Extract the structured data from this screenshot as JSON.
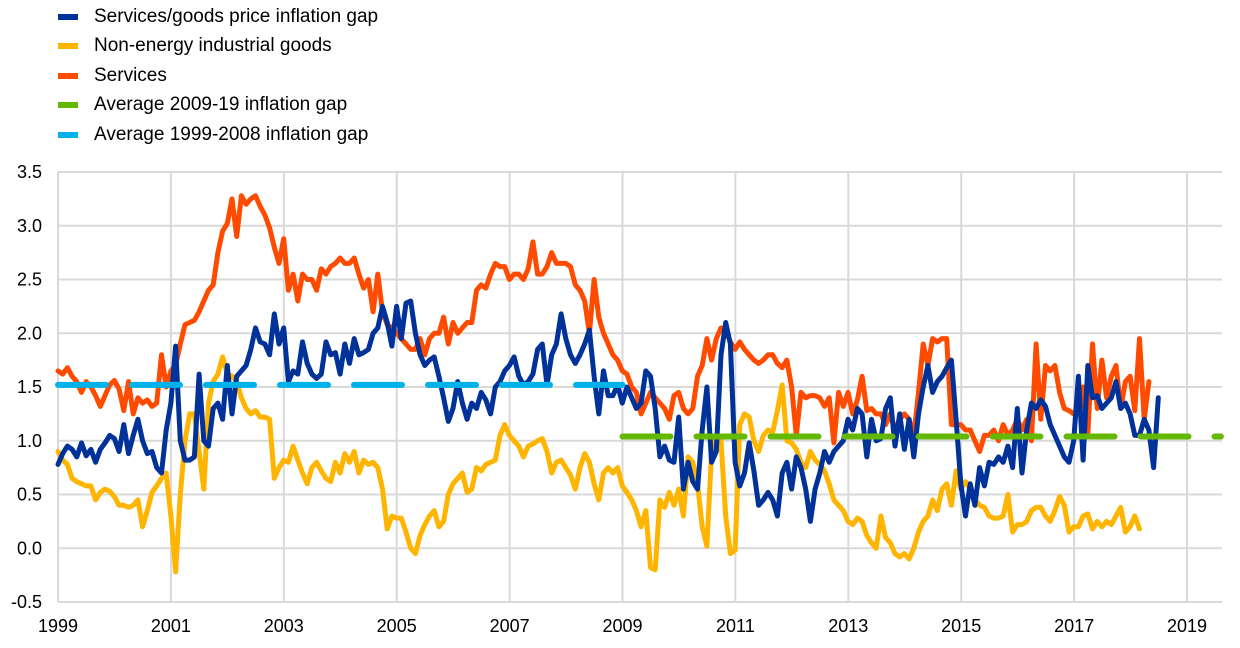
{
  "chart_data": {
    "type": "line",
    "title": "",
    "xlabel": "",
    "ylabel": "",
    "ylim": [
      -0.5,
      3.5
    ],
    "xlim": [
      1999.0,
      2019.6
    ],
    "grid": true,
    "legend_position": "top-left",
    "y_ticks": [
      "3.5",
      "3.0",
      "2.5",
      "2.0",
      "1.5",
      "1.0",
      "0.5",
      "0.0",
      "-0.5"
    ],
    "y_tick_values": [
      3.5,
      3.0,
      2.5,
      2.0,
      1.5,
      1.0,
      0.5,
      0.0,
      -0.5
    ],
    "x_ticks": [
      "1999",
      "2001",
      "2003",
      "2005",
      "2007",
      "2009",
      "2011",
      "2013",
      "2015",
      "2017",
      "2019"
    ],
    "x_tick_values": [
      1999,
      2001,
      2003,
      2005,
      2007,
      2009,
      2011,
      2013,
      2015,
      2017,
      2019
    ],
    "colors": {
      "gap": "#003299",
      "goods": "#FFB400",
      "services": "#FF4B00",
      "avg_recent": "#65B800",
      "avg_early": "#00B1EA"
    },
    "series": [
      {
        "key": "gap",
        "name": "Services/goods price inflation gap",
        "start": 1999.0,
        "step": 0.0833,
        "values": [
          0.78,
          0.88,
          0.95,
          0.92,
          0.85,
          0.98,
          0.86,
          0.92,
          0.8,
          0.92,
          0.98,
          1.05,
          1.02,
          0.9,
          1.15,
          0.88,
          1.05,
          1.2,
          1.0,
          0.88,
          0.9,
          0.75,
          0.7,
          1.1,
          1.35,
          1.88,
          1.0,
          0.82,
          0.82,
          0.85,
          1.62,
          1.0,
          0.95,
          1.3,
          1.35,
          1.2,
          1.7,
          1.25,
          1.6,
          1.65,
          1.7,
          1.85,
          2.05,
          1.92,
          1.9,
          1.8,
          2.18,
          1.9,
          2.05,
          1.55,
          1.65,
          1.62,
          1.92,
          1.72,
          1.62,
          1.58,
          1.62,
          1.92,
          1.8,
          1.82,
          1.62,
          1.9,
          1.72,
          1.95,
          1.8,
          1.82,
          1.85,
          2.0,
          2.05,
          2.25,
          2.1,
          1.88,
          2.25,
          1.95,
          2.28,
          2.3,
          2.0,
          1.8,
          1.7,
          1.75,
          1.78,
          1.6,
          1.4,
          1.18,
          1.3,
          1.55,
          1.35,
          1.2,
          1.35,
          1.3,
          1.45,
          1.38,
          1.25,
          1.5,
          1.55,
          1.65,
          1.7,
          1.78,
          1.6,
          1.52,
          1.55,
          1.62,
          1.85,
          1.9,
          1.52,
          1.8,
          1.9,
          2.18,
          1.95,
          1.8,
          1.72,
          1.8,
          1.9,
          2.03,
          1.6,
          1.25,
          1.65,
          1.42,
          1.42,
          1.52,
          1.35,
          1.5,
          1.4,
          1.3,
          1.35,
          1.65,
          1.6,
          1.3,
          0.85,
          0.95,
          0.82,
          0.8,
          1.22,
          0.55,
          0.8,
          0.62,
          0.55,
          1.1,
          1.5,
          0.8,
          0.9,
          1.8,
          2.1,
          1.9,
          0.8,
          0.58,
          0.7,
          0.98,
          0.72,
          0.4,
          0.45,
          0.52,
          0.45,
          0.3,
          0.7,
          0.8,
          0.55,
          0.85,
          0.75,
          0.55,
          0.25,
          0.55,
          0.7,
          0.9,
          0.8,
          0.9,
          0.95,
          1.0,
          1.2,
          1.1,
          1.3,
          1.25,
          0.85,
          1.2,
          1.0,
          1.02,
          1.3,
          1.4,
          0.95,
          1.25,
          0.92,
          1.2,
          0.85,
          1.25,
          1.5,
          1.7,
          1.45,
          1.55,
          1.6,
          1.68,
          1.75,
          1.2,
          0.6,
          0.3,
          0.6,
          0.4,
          0.75,
          0.58,
          0.8,
          0.78,
          0.85,
          0.8,
          0.95,
          0.75,
          1.3,
          0.7,
          1.1,
          1.35,
          1.3,
          1.38,
          1.32,
          1.15,
          1.05,
          0.95,
          0.85,
          0.8,
          1.0,
          1.6,
          0.82,
          1.7,
          1.4,
          1.42,
          1.3,
          1.35,
          1.4,
          1.55,
          1.3,
          1.35,
          1.25,
          1.05,
          1.05,
          1.2,
          1.1,
          0.75,
          1.4
        ]
      },
      {
        "key": "goods",
        "name": "Non-energy industrial goods",
        "start": 1999.0,
        "step": 0.0833,
        "values": [
          0.9,
          0.82,
          0.78,
          0.65,
          0.62,
          0.6,
          0.58,
          0.58,
          0.45,
          0.52,
          0.55,
          0.53,
          0.48,
          0.4,
          0.4,
          0.38,
          0.4,
          0.45,
          0.2,
          0.35,
          0.52,
          0.58,
          0.65,
          0.7,
          0.3,
          -0.22,
          0.5,
          1.0,
          1.25,
          1.25,
          0.9,
          0.55,
          1.35,
          1.55,
          1.62,
          1.78,
          1.62,
          1.6,
          1.55,
          1.4,
          1.3,
          1.25,
          1.28,
          1.22,
          1.22,
          1.2,
          0.65,
          0.75,
          0.82,
          0.8,
          0.95,
          0.82,
          0.7,
          0.6,
          0.75,
          0.8,
          0.72,
          0.65,
          0.62,
          0.8,
          0.7,
          0.88,
          0.8,
          0.9,
          0.7,
          0.82,
          0.78,
          0.8,
          0.75,
          0.55,
          0.18,
          0.3,
          0.28,
          0.28,
          0.15,
          0.0,
          -0.05,
          0.12,
          0.22,
          0.3,
          0.35,
          0.2,
          0.25,
          0.5,
          0.6,
          0.65,
          0.7,
          0.52,
          0.55,
          0.75,
          0.72,
          0.78,
          0.8,
          0.82,
          1.05,
          1.15,
          1.05,
          1.0,
          0.95,
          0.85,
          0.95,
          0.97,
          1.0,
          1.02,
          0.9,
          0.7,
          0.8,
          0.82,
          0.75,
          0.68,
          0.55,
          0.75,
          0.88,
          0.8,
          0.6,
          0.45,
          0.7,
          0.75,
          0.7,
          0.75,
          0.58,
          0.52,
          0.45,
          0.35,
          0.2,
          0.35,
          -0.18,
          -0.2,
          0.45,
          0.38,
          0.52,
          0.4,
          0.55,
          0.3,
          0.85,
          0.8,
          0.6,
          0.2,
          0.02,
          0.9,
          1.05,
          1.0,
          0.3,
          -0.05,
          -0.02,
          1.15,
          1.25,
          1.22,
          1.0,
          0.9,
          1.05,
          1.1,
          1.08,
          1.28,
          1.52,
          1.0,
          0.98,
          0.92,
          0.8,
          0.75,
          0.9,
          0.82,
          0.78,
          0.72,
          0.6,
          0.45,
          0.4,
          0.35,
          0.25,
          0.22,
          0.28,
          0.25,
          0.12,
          0.05,
          0.0,
          0.3,
          0.1,
          0.05,
          -0.05,
          -0.08,
          -0.05,
          -0.1,
          0.0,
          0.15,
          0.25,
          0.3,
          0.45,
          0.35,
          0.55,
          0.6,
          0.4,
          0.72,
          0.55,
          0.62,
          0.55,
          0.45,
          0.4,
          0.38,
          0.3,
          0.28,
          0.28,
          0.3,
          0.5,
          0.15,
          0.22,
          0.22,
          0.25,
          0.35,
          0.38,
          0.38,
          0.3,
          0.25,
          0.35,
          0.48,
          0.4,
          0.15,
          0.2,
          0.2,
          0.3,
          0.32,
          0.18,
          0.25,
          0.2,
          0.25,
          0.22,
          0.3,
          0.38,
          0.15,
          0.2,
          0.3,
          0.18
        ]
      },
      {
        "key": "services",
        "name": "Services",
        "start": 1999.0,
        "step": 0.0833,
        "values": [
          1.65,
          1.62,
          1.68,
          1.6,
          1.55,
          1.45,
          1.55,
          1.5,
          1.42,
          1.32,
          1.42,
          1.52,
          1.56,
          1.48,
          1.28,
          1.55,
          1.25,
          1.4,
          1.35,
          1.38,
          1.32,
          1.35,
          1.8,
          1.5,
          1.65,
          1.7,
          1.9,
          2.08,
          2.1,
          2.12,
          2.2,
          2.3,
          2.4,
          2.45,
          2.75,
          2.95,
          3.02,
          3.25,
          2.9,
          3.28,
          3.2,
          3.25,
          3.28,
          3.18,
          3.1,
          2.98,
          2.8,
          2.65,
          2.88,
          2.4,
          2.55,
          2.3,
          2.55,
          2.5,
          2.5,
          2.4,
          2.6,
          2.55,
          2.62,
          2.65,
          2.7,
          2.65,
          2.65,
          2.7,
          2.55,
          2.42,
          2.5,
          2.2,
          2.55,
          2.2,
          2.08,
          2.05,
          2.0,
          1.95,
          1.9,
          1.85,
          1.85,
          1.95,
          1.8,
          1.95,
          2.0,
          2.0,
          2.15,
          1.9,
          2.1,
          2.0,
          2.05,
          2.1,
          2.1,
          2.4,
          2.45,
          2.42,
          2.55,
          2.65,
          2.62,
          2.62,
          2.5,
          2.55,
          2.55,
          2.5,
          2.6,
          2.85,
          2.55,
          2.55,
          2.62,
          2.75,
          2.65,
          2.65,
          2.65,
          2.62,
          2.45,
          2.4,
          2.3,
          2.0,
          2.5,
          2.15,
          2.0,
          1.9,
          1.8,
          1.75,
          1.65,
          1.62,
          1.5,
          1.45,
          1.25,
          1.35,
          1.45,
          1.4,
          1.35,
          1.3,
          1.2,
          1.42,
          1.45,
          1.3,
          1.25,
          1.3,
          1.6,
          1.7,
          1.95,
          1.75,
          1.95,
          2.05,
          2.02,
          1.92,
          1.85,
          1.92,
          1.85,
          1.8,
          1.75,
          1.72,
          1.75,
          1.8,
          1.8,
          1.72,
          1.68,
          1.75,
          1.5,
          1.05,
          1.45,
          1.4,
          1.42,
          1.42,
          1.4,
          1.32,
          1.4,
          0.98,
          1.45,
          1.32,
          1.45,
          1.25,
          1.38,
          1.6,
          1.28,
          1.3,
          1.25,
          1.25,
          1.15,
          1.25,
          1.1,
          1.2,
          1.25,
          1.2,
          1.05,
          1.45,
          1.9,
          1.7,
          1.95,
          1.92,
          1.95,
          1.95,
          1.15,
          1.15,
          1.15,
          1.1,
          1.1,
          1.0,
          0.9,
          1.05,
          1.05,
          1.1,
          1.0,
          1.15,
          1.05,
          1.1,
          1.2,
          1.1,
          1.2,
          1.0,
          1.9,
          1.2,
          1.7,
          1.65,
          1.7,
          1.45,
          1.3,
          1.28,
          1.25,
          1.3,
          1.5,
          1.05,
          1.9,
          1.3,
          1.75,
          1.4,
          1.6,
          1.7,
          1.3,
          1.55,
          1.6,
          1.28,
          1.95,
          1.2,
          1.55
        ]
      },
      {
        "key": "avg_recent",
        "name": "Average 2009-19 inflation gap",
        "dashed": true,
        "x_range": [
          2009.0,
          2019.6
        ],
        "value": 1.04
      },
      {
        "key": "avg_early",
        "name": "Average 1999-2008 inflation gap",
        "dashed": true,
        "x_range": [
          1999.0,
          2009.0
        ],
        "value": 1.52
      }
    ]
  }
}
